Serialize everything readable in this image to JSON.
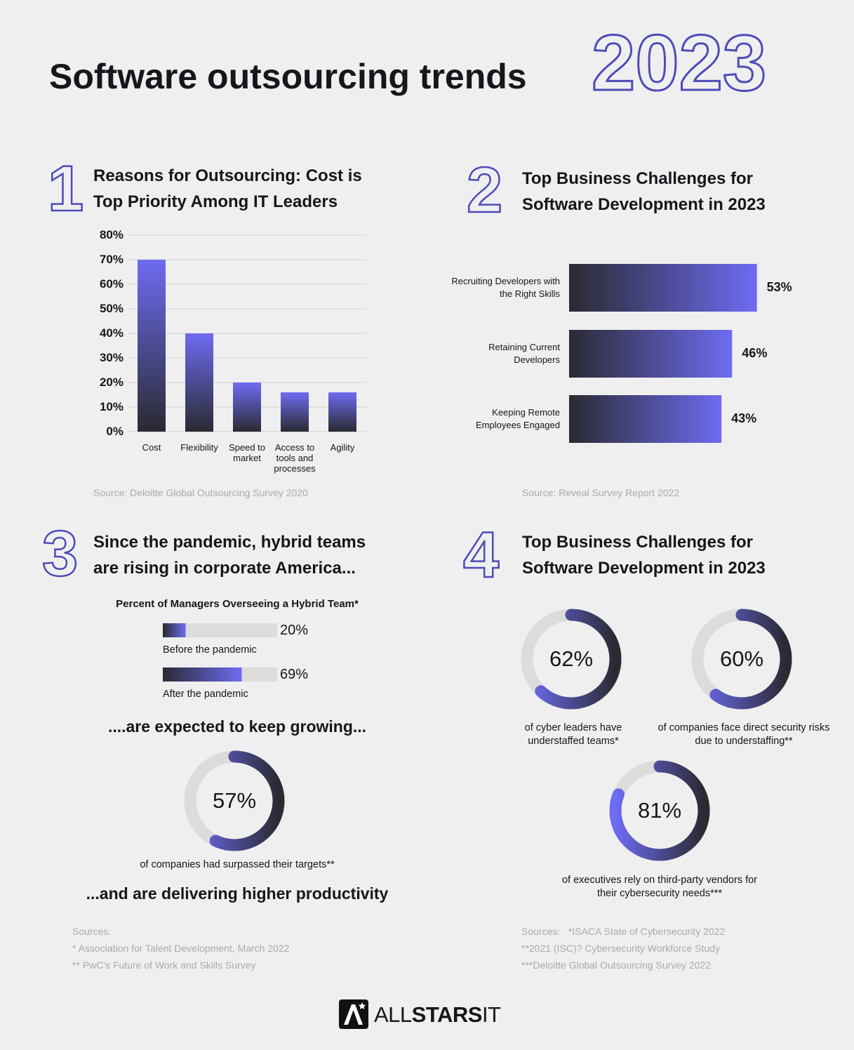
{
  "title": "Software outsourcing trends",
  "title_year": "2023",
  "chart_data": [
    {
      "type": "bar",
      "number": "1",
      "title": "Reasons for Outsourcing: Cost is Top Priority Among IT Leaders",
      "categories": [
        "Cost",
        "Flexibility",
        "Speed to market",
        "Access to tools and processes",
        "Agility"
      ],
      "values": [
        70,
        40,
        20,
        16,
        16
      ],
      "ylim": [
        0,
        80
      ],
      "yticks": [
        {
          "value": 0,
          "label": "0%"
        },
        {
          "value": 10,
          "label": "10%"
        },
        {
          "value": 20,
          "label": "20%"
        },
        {
          "value": 30,
          "label": "30%"
        },
        {
          "value": 40,
          "label": "40%"
        },
        {
          "value": 50,
          "label": "50%"
        },
        {
          "value": 60,
          "label": "60%"
        },
        {
          "value": 70,
          "label": "70%"
        },
        {
          "value": 80,
          "label": "80%"
        }
      ],
      "grid": true,
      "color": "#6d6cf2",
      "source": "Source: Deloitte Global Outsourcing Survey 2020"
    },
    {
      "type": "hbar",
      "number": "2",
      "title": "Top Business Challenges for Software Development in 2023",
      "categories": [
        "Recruiting Developers with the Right Skills",
        "Retaining Current Developers",
        "Keeping Remote Employees Engaged"
      ],
      "values": [
        53,
        46,
        43
      ],
      "value_labels": [
        "53%",
        "46%",
        "43%"
      ],
      "color": "#6d6cf2",
      "source": "Source: Reveal Survey Report 2022"
    },
    {
      "type": "progress",
      "number": "3",
      "title": "Since the pandemic, hybrid teams are rising in corporate America...",
      "subtitle": "Percent of Managers Overseeing a Hybrid Team*",
      "categories": [
        "Before the pandemic",
        "After the pandemic"
      ],
      "values": [
        20,
        69
      ],
      "value_labels": [
        "20%",
        "69%"
      ],
      "color": "#6d6cf2"
    },
    {
      "type": "donut",
      "heading": "....are expected to keep growing...",
      "values": [
        57
      ],
      "value_labels": [
        "57%"
      ],
      "captions": [
        "of companies had surpassed their targets**"
      ],
      "footer": "...and are delivering higher productivity",
      "sources": [
        "Sources:",
        "* Association for Talent Development, March 2022",
        "** PwC's Future of Work and Skills Survey"
      ],
      "color": "#6d6cf2"
    },
    {
      "type": "donut",
      "number": "4",
      "title": "Top Business Challenges for Software Development in 2023",
      "values": [
        62,
        60,
        81
      ],
      "value_labels": [
        "62%",
        "60%",
        "81%"
      ],
      "captions": [
        "of cyber leaders have understaffed teams*",
        "of companies face direct security risks due to understaffing**",
        "of executives rely on third-party vendors for their cybersecurity needs***"
      ],
      "sources": [
        "Sources:   *ISACA State of Cybersecurity 2022",
        "**2021 (ISC)? Cybersecurity Workforce Study",
        "***Deloitte Global Outsourcing Survey 2022"
      ],
      "color": "#6d6cf2"
    }
  ],
  "logo": [
    "ALL",
    "STARS",
    "IT"
  ]
}
